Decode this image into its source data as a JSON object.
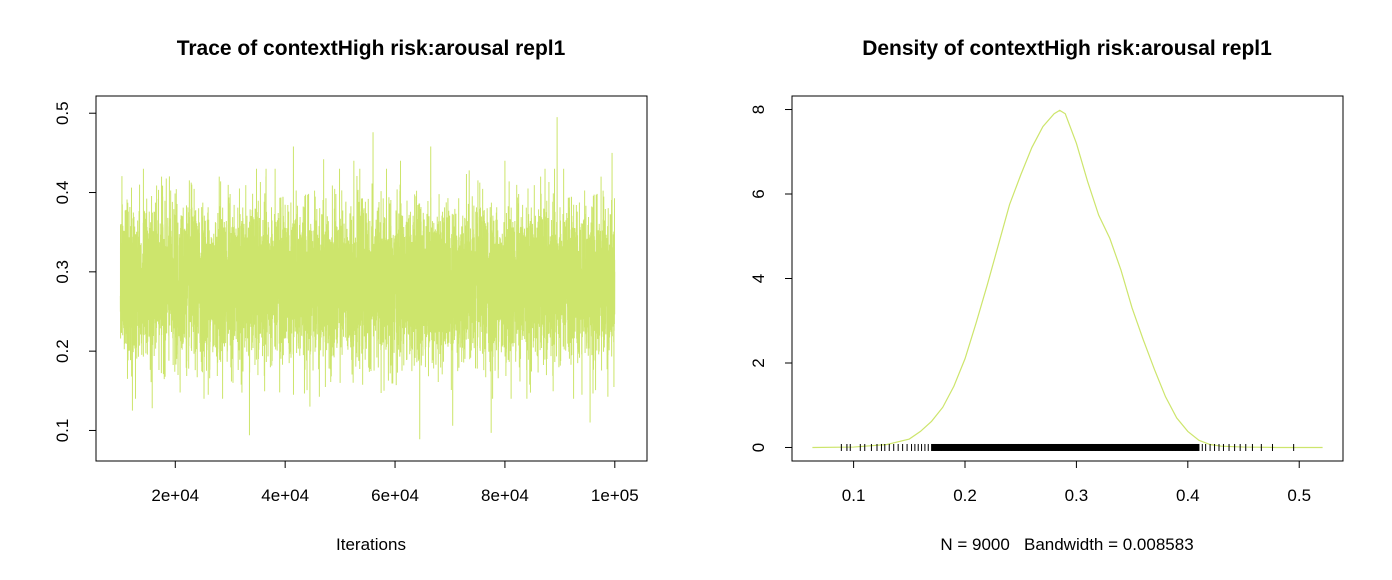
{
  "chart_data": [
    {
      "type": "line",
      "title": "Trace of contextHigh risk:arousal repl1",
      "xlabel": "Iterations",
      "ylabel": "",
      "xlim": [
        10000,
        100000
      ],
      "ylim": [
        0.09,
        0.5
      ],
      "x_ticks": [
        20000,
        40000,
        60000,
        80000,
        100000
      ],
      "x_tick_labels": [
        "2e+04",
        "4e+04",
        "6e+04",
        "8e+04",
        "1e+05"
      ],
      "y_ticks": [
        0.1,
        0.2,
        0.3,
        0.4,
        0.5
      ],
      "y_tick_labels": [
        "0.1",
        "0.2",
        "0.3",
        "0.4",
        "0.5"
      ],
      "grid": false,
      "series": [
        {
          "color": "#CDE56C",
          "summary": {
            "n_iterations": 9000,
            "mean": 0.285,
            "sd": 0.048,
            "min": 0.089,
            "max": 0.495
          },
          "spikes": [
            {
              "x": 11300,
              "y": 0.165
            },
            {
              "x": 12200,
              "y": 0.125
            },
            {
              "x": 13500,
              "y": 0.41
            },
            {
              "x": 14200,
              "y": 0.43
            },
            {
              "x": 15800,
              "y": 0.128
            },
            {
              "x": 17500,
              "y": 0.42
            },
            {
              "x": 20500,
              "y": 0.17
            },
            {
              "x": 23000,
              "y": 0.41
            },
            {
              "x": 26000,
              "y": 0.145
            },
            {
              "x": 28000,
              "y": 0.42
            },
            {
              "x": 30500,
              "y": 0.16
            },
            {
              "x": 33500,
              "y": 0.094
            },
            {
              "x": 36500,
              "y": 0.42
            },
            {
              "x": 39000,
              "y": 0.148
            },
            {
              "x": 41500,
              "y": 0.458
            },
            {
              "x": 44500,
              "y": 0.13
            },
            {
              "x": 47000,
              "y": 0.442
            },
            {
              "x": 50000,
              "y": 0.16
            },
            {
              "x": 52500,
              "y": 0.44
            },
            {
              "x": 56000,
              "y": 0.476
            },
            {
              "x": 58000,
              "y": 0.15
            },
            {
              "x": 61000,
              "y": 0.44
            },
            {
              "x": 64500,
              "y": 0.089
            },
            {
              "x": 66500,
              "y": 0.458
            },
            {
              "x": 70500,
              "y": 0.106
            },
            {
              "x": 73500,
              "y": 0.428
            },
            {
              "x": 77500,
              "y": 0.097
            },
            {
              "x": 80000,
              "y": 0.44
            },
            {
              "x": 84000,
              "y": 0.14
            },
            {
              "x": 86500,
              "y": 0.42
            },
            {
              "x": 89500,
              "y": 0.495
            },
            {
              "x": 92500,
              "y": 0.14
            },
            {
              "x": 95500,
              "y": 0.11
            },
            {
              "x": 97500,
              "y": 0.42
            },
            {
              "x": 99500,
              "y": 0.45
            }
          ]
        }
      ]
    },
    {
      "type": "area",
      "title": "Density of contextHigh risk:arousal repl1",
      "xlabel": "N = 9000   Bandwidth = 0.008583",
      "ylabel": "",
      "xlim": [
        0.063,
        0.521
      ],
      "ylim": [
        0,
        8
      ],
      "x_ticks": [
        0.1,
        0.2,
        0.3,
        0.4,
        0.5
      ],
      "x_tick_labels": [
        "0.1",
        "0.2",
        "0.3",
        "0.4",
        "0.5"
      ],
      "y_ticks": [
        0,
        2,
        4,
        6,
        8
      ],
      "y_tick_labels": [
        "0",
        "2",
        "4",
        "6",
        "8"
      ],
      "grid": false,
      "sample_size": 9000,
      "bandwidth": 0.008583,
      "series": [
        {
          "color": "#CDE56C",
          "x": [
            0.063,
            0.1,
            0.13,
            0.15,
            0.16,
            0.17,
            0.18,
            0.19,
            0.2,
            0.21,
            0.22,
            0.23,
            0.24,
            0.25,
            0.26,
            0.27,
            0.28,
            0.285,
            0.29,
            0.3,
            0.31,
            0.32,
            0.33,
            0.34,
            0.35,
            0.36,
            0.37,
            0.38,
            0.39,
            0.4,
            0.41,
            0.42,
            0.43,
            0.45,
            0.48,
            0.521
          ],
          "y": [
            0,
            0.01,
            0.07,
            0.2,
            0.38,
            0.62,
            0.95,
            1.45,
            2.1,
            2.95,
            3.85,
            4.8,
            5.75,
            6.45,
            7.1,
            7.6,
            7.9,
            7.98,
            7.9,
            7.2,
            6.3,
            5.5,
            4.95,
            4.2,
            3.3,
            2.55,
            1.85,
            1.2,
            0.7,
            0.38,
            0.17,
            0.07,
            0.03,
            0.01,
            0,
            0
          ]
        }
      ],
      "rug": {
        "color": "#000000",
        "values": [
          0.089,
          0.094,
          0.097,
          0.106,
          0.11,
          0.116,
          0.121,
          0.125,
          0.128,
          0.132,
          0.136,
          0.14,
          0.144,
          0.148,
          0.152,
          0.155,
          0.158,
          0.161,
          0.164,
          0.167,
          0.17,
          0.173,
          0.176,
          0.179,
          0.182,
          0.185,
          0.188,
          0.191,
          0.194,
          0.197,
          0.2,
          0.203,
          0.206,
          0.209,
          0.212,
          0.215,
          0.218,
          0.221,
          0.224,
          0.227,
          0.23,
          0.233,
          0.236,
          0.239,
          0.242,
          0.245,
          0.248,
          0.251,
          0.254,
          0.257,
          0.26,
          0.263,
          0.266,
          0.269,
          0.272,
          0.275,
          0.278,
          0.281,
          0.284,
          0.287,
          0.29,
          0.293,
          0.296,
          0.299,
          0.302,
          0.305,
          0.308,
          0.311,
          0.314,
          0.317,
          0.32,
          0.323,
          0.326,
          0.329,
          0.332,
          0.335,
          0.338,
          0.341,
          0.344,
          0.347,
          0.35,
          0.353,
          0.356,
          0.359,
          0.362,
          0.365,
          0.368,
          0.371,
          0.374,
          0.377,
          0.38,
          0.383,
          0.386,
          0.389,
          0.392,
          0.395,
          0.398,
          0.401,
          0.404,
          0.407,
          0.41,
          0.413,
          0.416,
          0.42,
          0.424,
          0.428,
          0.432,
          0.437,
          0.442,
          0.447,
          0.452,
          0.458,
          0.466,
          0.476,
          0.495
        ]
      }
    }
  ]
}
